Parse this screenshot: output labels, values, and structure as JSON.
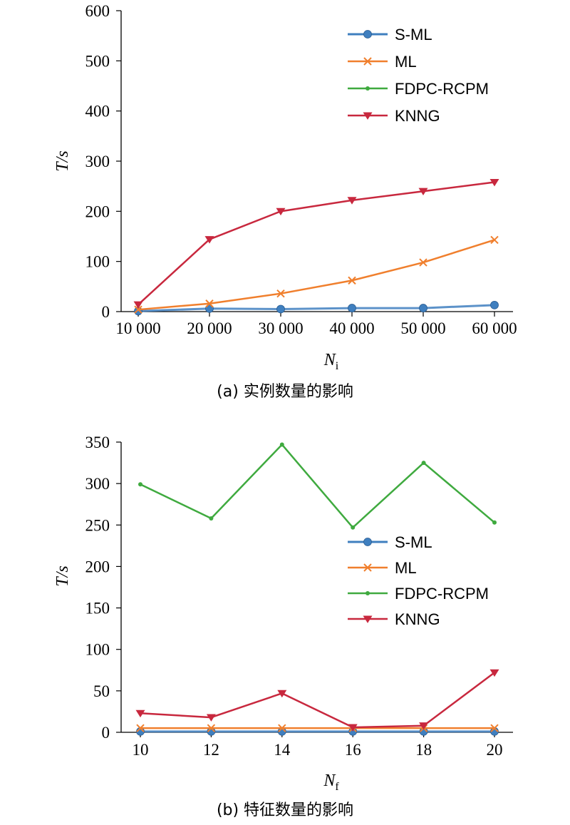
{
  "chart_data": [
    {
      "type": "line",
      "caption": "(a) 实例数量的影响",
      "xlabel": "N",
      "xlabel_sub": "i",
      "ylabel": "T/s",
      "x": [
        10000,
        20000,
        30000,
        40000,
        50000,
        60000
      ],
      "x_tick_labels": [
        "10 000",
        "20 000",
        "30 000",
        "40 000",
        "50 000",
        "60 000"
      ],
      "ylim": [
        0,
        600
      ],
      "y_ticks": [
        0,
        100,
        200,
        300,
        400,
        500,
        600
      ],
      "grid": false,
      "legend_position": "top-right",
      "series": [
        {
          "name": "S-ML",
          "color": "#3f7fbf",
          "marker": "circle",
          "values": [
            1,
            6,
            5,
            7,
            7,
            13
          ]
        },
        {
          "name": "ML",
          "color": "#f07f2d",
          "marker": "x",
          "values": [
            4,
            16,
            36,
            62,
            98,
            143
          ]
        },
        {
          "name": "FDPC-RCPM",
          "color": "#3faa3f",
          "marker": "dot",
          "values": [
            null,
            null,
            null,
            null,
            null,
            null
          ]
        },
        {
          "name": "KNNG",
          "color": "#c8283e",
          "marker": "triangle-down",
          "values": [
            14,
            144,
            200,
            222,
            240,
            258
          ]
        }
      ]
    },
    {
      "type": "line",
      "caption": "(b) 特征数量的影响",
      "xlabel": "N",
      "xlabel_sub": "f",
      "ylabel": "T/s",
      "x": [
        10,
        12,
        14,
        16,
        18,
        20
      ],
      "x_tick_labels": [
        "10",
        "12",
        "14",
        "16",
        "18",
        "20"
      ],
      "ylim": [
        0,
        350
      ],
      "y_ticks": [
        0,
        50,
        100,
        150,
        200,
        250,
        300,
        350
      ],
      "grid": false,
      "legend_position": "right",
      "series": [
        {
          "name": "S-ML",
          "color": "#3f7fbf",
          "marker": "circle",
          "values": [
            1,
            1,
            1,
            1,
            1,
            1
          ]
        },
        {
          "name": "ML",
          "color": "#f07f2d",
          "marker": "x",
          "values": [
            5,
            5,
            5,
            5,
            5,
            5
          ]
        },
        {
          "name": "FDPC-RCPM",
          "color": "#3faa3f",
          "marker": "dot",
          "values": [
            299,
            258,
            347,
            247,
            325,
            253
          ]
        },
        {
          "name": "KNNG",
          "color": "#c8283e",
          "marker": "triangle-down",
          "values": [
            23,
            18,
            47,
            6,
            8,
            72
          ]
        }
      ]
    }
  ]
}
